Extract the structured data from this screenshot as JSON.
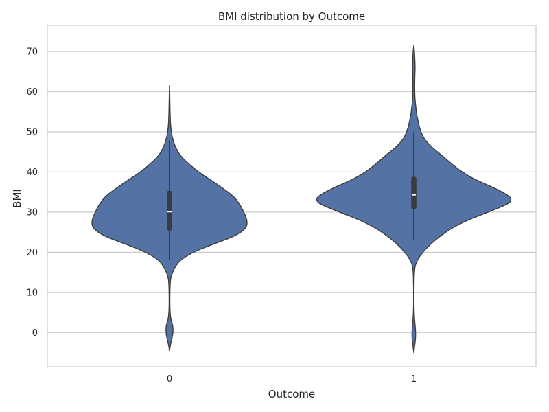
{
  "chart_data": {
    "type": "violin",
    "title": "BMI distribution by Outcome",
    "xlabel": "Outcome",
    "ylabel": "BMI",
    "categories": [
      "0",
      "1"
    ],
    "ylim": [
      -8.5,
      76.5
    ],
    "yticks": [
      0,
      10,
      20,
      30,
      40,
      50,
      60,
      70
    ],
    "grid": true,
    "color": "#5472a4",
    "edge_color": "#3c3c3c",
    "series": [
      {
        "category": "0",
        "min": 18.2,
        "q1": 25.4,
        "median": 30.1,
        "q3": 35.3,
        "max": 47.9,
        "density": [
          [
            -4.5,
            0.0
          ],
          [
            -3.0,
            1.4
          ],
          [
            -1.5,
            3.6
          ],
          [
            0.0,
            5.2
          ],
          [
            1.5,
            5.0
          ],
          [
            2.5,
            3.5
          ],
          [
            3.5,
            1.8
          ],
          [
            5.0,
            0.8
          ],
          [
            8.0,
            0.4
          ],
          [
            12.0,
            0.8
          ],
          [
            14.0,
            2.0
          ],
          [
            16.0,
            7.0
          ],
          [
            18.0,
            15.0
          ],
          [
            20.0,
            34.0
          ],
          [
            22.0,
            63.0
          ],
          [
            24.0,
            95.0
          ],
          [
            26.0,
            112.0
          ],
          [
            28.0,
            113.0
          ],
          [
            30.0,
            108.0
          ],
          [
            32.0,
            102.0
          ],
          [
            34.0,
            93.0
          ],
          [
            36.0,
            77.0
          ],
          [
            38.0,
            60.0
          ],
          [
            40.0,
            42.0
          ],
          [
            42.0,
            28.0
          ],
          [
            44.0,
            16.0
          ],
          [
            46.0,
            9.0
          ],
          [
            48.0,
            5.0
          ],
          [
            50.0,
            2.5
          ],
          [
            52.0,
            1.4
          ],
          [
            55.0,
            0.8
          ],
          [
            58.0,
            0.5
          ],
          [
            61.5,
            0.0
          ]
        ]
      },
      {
        "category": "1",
        "min": 22.9,
        "q1": 30.8,
        "median": 34.3,
        "q3": 38.8,
        "max": 49.9,
        "density": [
          [
            -5.0,
            0.0
          ],
          [
            -3.0,
            1.5
          ],
          [
            -1.0,
            2.8
          ],
          [
            1.0,
            2.4
          ],
          [
            3.0,
            1.2
          ],
          [
            6.0,
            0.3
          ],
          [
            12.0,
            0.3
          ],
          [
            16.0,
            1.0
          ],
          [
            18.0,
            4.5
          ],
          [
            20.0,
            13.0
          ],
          [
            22.0,
            24.0
          ],
          [
            24.0,
            38.0
          ],
          [
            26.0,
            55.0
          ],
          [
            28.0,
            78.0
          ],
          [
            30.0,
            108.0
          ],
          [
            32.0,
            137.0
          ],
          [
            33.0,
            142.0
          ],
          [
            34.0,
            139.0
          ],
          [
            36.0,
            118.0
          ],
          [
            38.0,
            90.0
          ],
          [
            40.0,
            70.0
          ],
          [
            42.0,
            55.0
          ],
          [
            44.0,
            42.0
          ],
          [
            46.0,
            27.0
          ],
          [
            48.0,
            16.0
          ],
          [
            50.0,
            10.0
          ],
          [
            52.0,
            7.0
          ],
          [
            54.0,
            4.5
          ],
          [
            56.0,
            3.0
          ],
          [
            58.0,
            1.8
          ],
          [
            60.0,
            1.3
          ],
          [
            62.0,
            1.3
          ],
          [
            64.0,
            1.5
          ],
          [
            66.0,
            2.0
          ],
          [
            68.0,
            1.5
          ],
          [
            70.0,
            1.0
          ],
          [
            71.5,
            0.0
          ]
        ]
      }
    ]
  }
}
